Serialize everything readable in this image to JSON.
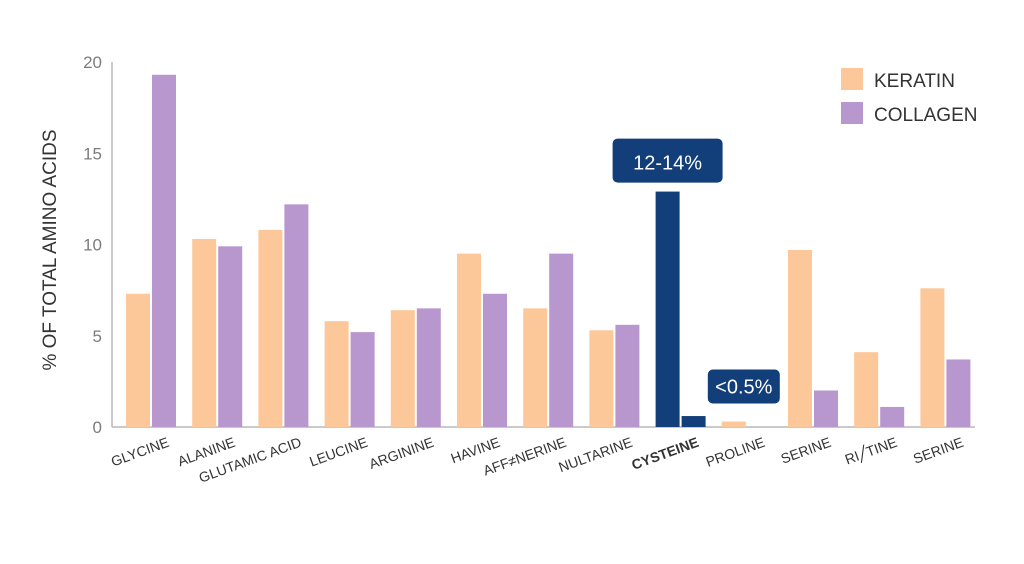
{
  "chart_data": {
    "type": "bar",
    "title": "",
    "xlabel": "",
    "ylabel": "% OF TOTAL AMINO ACIDS",
    "ylim": [
      0,
      20
    ],
    "yticks": [
      0,
      5,
      10,
      15,
      20
    ],
    "grid": false,
    "legend_position": "top-right",
    "categories": [
      "GLYCINE",
      "ALANINE",
      "GLUTAMIC ACID",
      "LEUCINE",
      "ARGININE",
      "HAVINE",
      "AFF≠NERINE",
      "NULTARINE",
      "CYSTEINE",
      "PROLINE",
      "SERINE",
      "RI╱TINE",
      "SERINE"
    ],
    "highlight_category": "CYSTEINE",
    "series": [
      {
        "name": "KERATIN",
        "values": [
          7.3,
          10.3,
          10.8,
          5.8,
          6.4,
          9.5,
          6.5,
          5.3,
          12.9,
          0.3,
          9.7,
          4.1,
          7.6
        ]
      },
      {
        "name": "COLLAGEN",
        "values": [
          19.3,
          9.9,
          12.2,
          5.2,
          6.5,
          7.3,
          9.5,
          5.6,
          0.6,
          0.0,
          2.0,
          1.1,
          3.7
        ]
      }
    ],
    "annotations": [
      {
        "text": "12-14%",
        "category": "CYSTEINE"
      },
      {
        "text": "<0.5%",
        "category": "PROLINE"
      }
    ],
    "colors": {
      "KERATIN": "#fcc799",
      "COLLAGEN": "#b897ce",
      "highlight": "#123e79",
      "axis": "#b9b9b9"
    }
  }
}
